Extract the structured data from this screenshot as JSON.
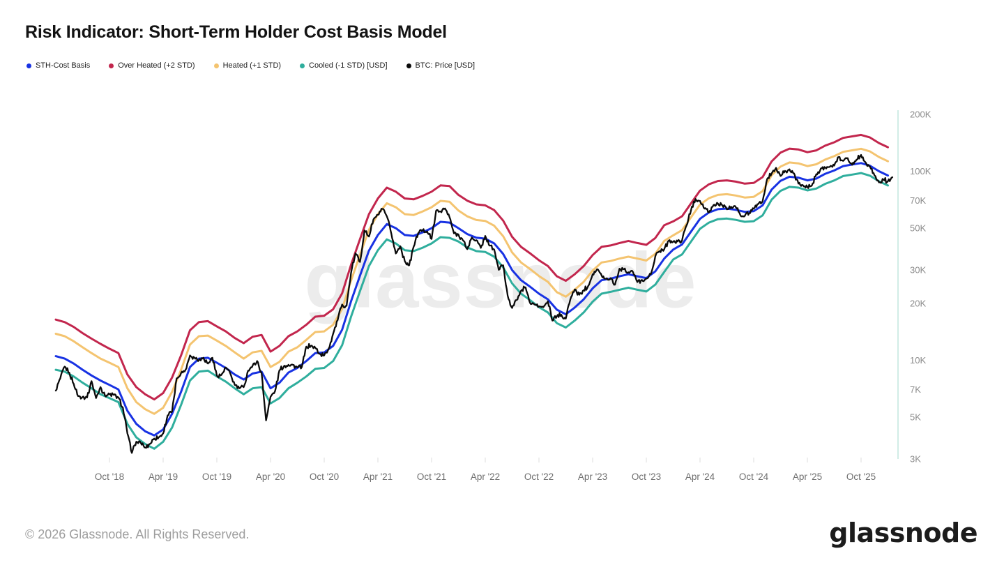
{
  "title": "Risk Indicator: Short-Term Holder Cost Basis Model",
  "watermark": "glassnode",
  "legend": {
    "items": [
      {
        "label": "STH-Cost Basis",
        "color": "#1832e3"
      },
      {
        "label": "Over Heated (+2 STD)",
        "color": "#c2264d"
      },
      {
        "label": "Heated (+1 STD)",
        "color": "#f4c470"
      },
      {
        "label": "Cooled (-1 STD) [USD]",
        "color": "#2fae9d"
      },
      {
        "label": "BTC: Price [USD]",
        "color": "#0a0a0a"
      }
    ]
  },
  "footer": {
    "copyright": "© 2026 Glassnode. All Rights Reserved.",
    "logo_text": "glassnode"
  },
  "chart_data": {
    "type": "line",
    "title": "Risk Indicator: Short-Term Holder Cost Basis Model",
    "y_scale": "log",
    "y_unit": "USD",
    "ylim_k": [
      3,
      200
    ],
    "axis_color": "#c2e5dd",
    "grid": "off",
    "legend_position": "top-left",
    "x_start_month": "2018-04",
    "x_end_month": "2026-01",
    "y_ticks": [
      {
        "label": "200K",
        "value_k": 200
      },
      {
        "label": "100K",
        "value_k": 100
      },
      {
        "label": "70K",
        "value_k": 70
      },
      {
        "label": "50K",
        "value_k": 50
      },
      {
        "label": "30K",
        "value_k": 30
      },
      {
        "label": "20K",
        "value_k": 20
      },
      {
        "label": "10K",
        "value_k": 10
      },
      {
        "label": "7K",
        "value_k": 7
      },
      {
        "label": "5K",
        "value_k": 5
      },
      {
        "label": "3K",
        "value_k": 3
      }
    ],
    "x_ticks": [
      {
        "label": "Oct '18",
        "month_index": 6
      },
      {
        "label": "Apr '19",
        "month_index": 12
      },
      {
        "label": "Oct '19",
        "month_index": 18
      },
      {
        "label": "Apr '20",
        "month_index": 24
      },
      {
        "label": "Oct '20",
        "month_index": 30
      },
      {
        "label": "Apr '21",
        "month_index": 36
      },
      {
        "label": "Oct '21",
        "month_index": 42
      },
      {
        "label": "Apr '22",
        "month_index": 48
      },
      {
        "label": "Oct '22",
        "month_index": 54
      },
      {
        "label": "Apr '23",
        "month_index": 60
      },
      {
        "label": "Oct '23",
        "month_index": 66
      },
      {
        "label": "Apr '24",
        "month_index": 72
      },
      {
        "label": "Oct '24",
        "month_index": 78
      },
      {
        "label": "Apr '25",
        "month_index": 84
      },
      {
        "label": "Oct '25",
        "month_index": 90
      }
    ],
    "series": [
      {
        "id": "over-heated",
        "name": "Over Heated (+2 STD)",
        "color": "#c2264d",
        "width": 3,
        "step_months": 1,
        "jitter": false,
        "values_k": [
          16.4,
          15.9,
          15.0,
          13.9,
          13.0,
          12.2,
          11.5,
          10.9,
          8.4,
          7.2,
          6.6,
          6.2,
          6.7,
          8.1,
          10.6,
          14.4,
          15.9,
          16.1,
          15.1,
          14.2,
          13.1,
          12.3,
          13.3,
          13.6,
          11.1,
          11.9,
          13.4,
          14.2,
          15.4,
          17.0,
          17.2,
          18.6,
          22.6,
          32.0,
          43.7,
          59.3,
          71.8,
          81.9,
          78.0,
          71.8,
          71.0,
          74.1,
          78.0,
          84.2,
          83.5,
          75.0,
          69.8,
          66.8,
          66.0,
          62.3,
          54.8,
          45.0,
          39.8,
          36.8,
          33.8,
          31.5,
          27.8,
          26.3,
          28.5,
          31.5,
          36.0,
          39.8,
          40.5,
          41.7,
          42.8,
          41.7,
          40.8,
          44.3,
          51.8,
          54.3,
          57.8,
          67.7,
          79.0,
          85.3,
          88.8,
          89.5,
          88.1,
          86.0,
          86.7,
          93.1,
          112.8,
          125.5,
          131.8,
          130.4,
          126.2,
          129.0,
          136.8,
          142.4,
          150.2,
          153.0,
          155.8,
          150.9,
          141.0,
          134.0
        ]
      },
      {
        "id": "heated",
        "name": "Heated (+1 STD)",
        "color": "#f4c470",
        "width": 3,
        "step_months": 1,
        "jitter": false,
        "values_k": [
          13.8,
          13.4,
          12.6,
          11.7,
          10.9,
          10.2,
          9.7,
          9.2,
          7.1,
          6.0,
          5.5,
          5.2,
          5.6,
          6.8,
          8.9,
          12.1,
          13.4,
          13.5,
          12.7,
          11.9,
          11.0,
          10.2,
          11.0,
          11.2,
          9.2,
          9.8,
          11.1,
          11.7,
          12.8,
          14.1,
          14.2,
          15.4,
          18.7,
          26.4,
          36.1,
          49.0,
          59.3,
          67.7,
          64.5,
          59.3,
          58.7,
          61.3,
          64.5,
          69.7,
          69.0,
          62.0,
          57.7,
          55.2,
          54.6,
          51.5,
          45.3,
          37.2,
          32.9,
          30.4,
          27.9,
          26.0,
          22.9,
          21.7,
          23.6,
          26.0,
          29.8,
          32.9,
          33.5,
          34.5,
          35.3,
          34.5,
          33.7,
          36.6,
          42.8,
          45.8,
          48.8,
          57.1,
          66.6,
          72.0,
          75.0,
          75.6,
          74.4,
          72.6,
          73.2,
          78.5,
          95.2,
          105.9,
          111.3,
          110.1,
          106.5,
          108.9,
          115.4,
          120.2,
          126.7,
          129.1,
          131.5,
          127.3,
          119.0,
          113.0
        ]
      },
      {
        "id": "cooled",
        "name": "Cooled (-1 STD) [USD]",
        "color": "#2fae9d",
        "width": 3,
        "step_months": 1,
        "jitter": false,
        "values_k": [
          8.9,
          8.7,
          8.2,
          7.6,
          7.1,
          6.6,
          6.3,
          6.0,
          4.6,
          3.9,
          3.6,
          3.4,
          3.7,
          4.4,
          5.8,
          7.8,
          8.7,
          8.8,
          8.2,
          7.7,
          7.1,
          6.6,
          7.1,
          7.2,
          5.9,
          6.3,
          7.1,
          7.6,
          8.2,
          9.0,
          9.1,
          9.9,
          12.0,
          17.0,
          23.2,
          31.5,
          38.2,
          43.6,
          41.5,
          38.2,
          37.8,
          39.4,
          41.5,
          44.8,
          44.4,
          42.5,
          39.5,
          37.8,
          37.4,
          35.3,
          31.0,
          25.5,
          22.5,
          20.8,
          19.1,
          17.9,
          15.7,
          14.9,
          16.2,
          17.9,
          20.4,
          22.5,
          23.0,
          23.6,
          24.2,
          23.6,
          23.1,
          25.1,
          29.3,
          34.1,
          36.3,
          42.5,
          49.6,
          53.5,
          55.8,
          56.2,
          55.3,
          54.0,
          54.4,
          58.4,
          70.8,
          78.8,
          82.7,
          81.9,
          79.2,
          81.0,
          85.8,
          89.4,
          94.3,
          96.0,
          97.8,
          94.7,
          88.5,
          84.1
        ]
      },
      {
        "id": "sth-cost-basis",
        "name": "STH-Cost Basis",
        "color": "#1832e3",
        "width": 3,
        "step_months": 1,
        "jitter": false,
        "values_k": [
          10.5,
          10.2,
          9.6,
          8.9,
          8.3,
          7.8,
          7.4,
          7.0,
          5.4,
          4.6,
          4.2,
          4.0,
          4.3,
          5.2,
          6.8,
          9.2,
          10.2,
          10.3,
          9.7,
          9.1,
          8.4,
          7.9,
          8.5,
          8.7,
          7.1,
          7.6,
          8.6,
          9.1,
          9.9,
          10.9,
          11.0,
          11.9,
          14.5,
          20.5,
          28,
          38,
          46,
          52.5,
          50,
          46,
          45.5,
          47.5,
          50,
          54,
          53.5,
          50,
          46.5,
          44.5,
          44,
          41.5,
          36.5,
          30,
          26.5,
          24.5,
          22.5,
          21,
          18.5,
          17.5,
          19,
          21,
          24,
          26.5,
          27,
          27.8,
          28.5,
          27.8,
          27.2,
          29.5,
          34.5,
          38.5,
          41,
          48,
          56,
          60.5,
          63,
          63.5,
          62.5,
          61,
          61.5,
          66,
          80,
          89,
          93.5,
          92.5,
          89.5,
          91.5,
          97,
          101,
          106.5,
          108.5,
          110.5,
          107,
          100,
          95
        ]
      },
      {
        "id": "btc-price",
        "name": "BTC: Price [USD]",
        "color": "#0a0a0a",
        "width": 2.3,
        "step_months": 0.5,
        "jitter": true,
        "values_k": [
          6.9,
          8.0,
          9.25,
          8.6,
          7.5,
          6.45,
          6.4,
          6.35,
          7.75,
          6.3,
          7.2,
          6.5,
          6.6,
          6.55,
          6.35,
          5.6,
          4.1,
          3.23,
          3.7,
          3.65,
          3.45,
          3.6,
          3.85,
          3.9,
          4.1,
          5.1,
          5.35,
          8.0,
          8.55,
          8.9,
          10.6,
          10.3,
          10.0,
          10.3,
          9.6,
          10.3,
          8.3,
          8.35,
          9.15,
          8.5,
          7.4,
          7.1,
          7.2,
          8.8,
          9.35,
          9.9,
          8.55,
          4.8,
          6.4,
          6.85,
          8.85,
          9.3,
          9.45,
          9.45,
          9.15,
          9.2,
          11.8,
          11.9,
          11.65,
          10.8,
          10.6,
          11.5,
          13.8,
          16.3,
          19.7,
          19.4,
          29.0,
          36.8,
          33.1,
          48.6,
          45.1,
          55.6,
          58.8,
          63.2,
          57.8,
          46.7,
          36.7,
          40.1,
          33.5,
          31.8,
          39.9,
          47.0,
          48.8,
          48.1,
          43.8,
          61.7,
          61.3,
          63.6,
          57.2,
          46.9,
          46.3,
          43.1,
          38.7,
          44.6,
          43.2,
          39.3,
          45.5,
          40.4,
          38.5,
          30.1,
          31.8,
          22.0,
          18.9,
          20.8,
          23.3,
          24.3,
          20.1,
          19.7,
          19.3,
          19.1,
          20.5,
          16.2,
          17.1,
          17.4,
          16.6,
          20.9,
          23.7,
          22.2,
          23.5,
          24.7,
          28.5,
          30.3,
          28.1,
          27.0,
          27.2,
          25.1,
          30.5,
          30.3,
          29.2,
          29.3,
          25.9,
          26.6,
          27.0,
          28.5,
          35.4,
          37.8,
          38.7,
          42.9,
          42.3,
          42.5,
          43.1,
          51.8,
          62.4,
          71.4,
          69.7,
          63.4,
          60.6,
          66.2,
          67.5,
          66.0,
          62.9,
          64.8,
          64.6,
          58.7,
          58.0,
          60.0,
          63.3,
          67.0,
          69.5,
          91.0,
          97.3,
          104.3,
          94.4,
          100.5,
          102.4,
          97.5,
          86.0,
          84.3,
          82.5,
          84.0,
          96.5,
          103.5,
          104.6,
          105.5,
          107.2,
          119.0,
          113.4,
          117.4,
          108.2,
          115.4,
          122.0,
          111.5,
          106.0,
          95.0,
          87.3,
          90.5,
          88.5,
          93.0
        ]
      }
    ]
  }
}
